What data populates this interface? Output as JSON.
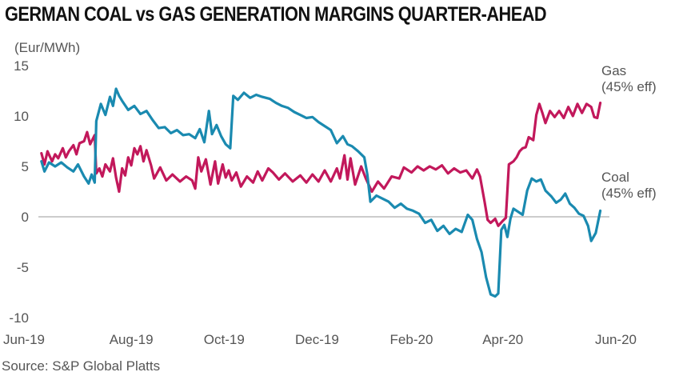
{
  "title": "GERMAN COAL vs GAS GENERATION MARGINS QUARTER-AHEAD",
  "unit_label": "(Eur/MWh)",
  "source": "Source: S&P Global Platts",
  "colors": {
    "gas": "#c2185b",
    "coal": "#1a8ab0",
    "zero_line": "#999999"
  },
  "chart_data": {
    "type": "line",
    "title": "GERMAN COAL vs GAS GENERATION MARGINS QUARTER-AHEAD",
    "xlabel": "",
    "ylabel": "(Eur/MWh)",
    "ylim": [
      -10,
      15
    ],
    "yticks": [
      15,
      10,
      5,
      0,
      -5,
      -10
    ],
    "ytick_labels": [
      "15",
      "10",
      "5",
      "0",
      "-5",
      "-10"
    ],
    "xlim": [
      "2019-06-01",
      "2020-06-10"
    ],
    "xticks": [
      "2019-06-01",
      "2019-08-01",
      "2019-10-01",
      "2019-12-01",
      "2020-02-01",
      "2020-04-01",
      "2020-06-01"
    ],
    "xtick_labels": [
      "Jun-19",
      "Aug-19",
      "Oct-19",
      "Dec-19",
      "Feb-20",
      "Apr-20",
      "Jun-20"
    ],
    "grid": false,
    "series": [
      {
        "name": "Gas",
        "label_lines": [
          "Gas",
          "(45% eff)"
        ],
        "points": [
          [
            "2019-06-03",
            6.3
          ],
          [
            "2019-06-05",
            5.2
          ],
          [
            "2019-06-07",
            6.5
          ],
          [
            "2019-06-10",
            5.5
          ],
          [
            "2019-06-12",
            6.2
          ],
          [
            "2019-06-14",
            5.8
          ],
          [
            "2019-06-17",
            6.8
          ],
          [
            "2019-06-19",
            5.9
          ],
          [
            "2019-06-21",
            6.5
          ],
          [
            "2019-06-24",
            7.1
          ],
          [
            "2019-06-26",
            6.2
          ],
          [
            "2019-06-28",
            7.3
          ],
          [
            "2019-07-01",
            7.5
          ],
          [
            "2019-07-03",
            8.4
          ],
          [
            "2019-07-05",
            7.2
          ],
          [
            "2019-07-08",
            8.1
          ],
          [
            "2019-07-09",
            4.3
          ],
          [
            "2019-07-11",
            4.8
          ],
          [
            "2019-07-13",
            4.0
          ],
          [
            "2019-07-15",
            5.2
          ],
          [
            "2019-07-18",
            4.5
          ],
          [
            "2019-07-20",
            5.8
          ],
          [
            "2019-07-22",
            3.9
          ],
          [
            "2019-07-24",
            2.5
          ],
          [
            "2019-07-26",
            4.8
          ],
          [
            "2019-07-28",
            4.1
          ],
          [
            "2019-07-30",
            5.9
          ],
          [
            "2019-08-01",
            5.1
          ],
          [
            "2019-08-03",
            6.8
          ],
          [
            "2019-08-05",
            6.2
          ],
          [
            "2019-08-07",
            7.0
          ],
          [
            "2019-08-09",
            5.5
          ],
          [
            "2019-08-11",
            6.6
          ],
          [
            "2019-08-14",
            5.1
          ],
          [
            "2019-08-16",
            3.8
          ],
          [
            "2019-08-20",
            4.9
          ],
          [
            "2019-08-24",
            3.6
          ],
          [
            "2019-08-28",
            4.2
          ],
          [
            "2019-09-02",
            3.5
          ],
          [
            "2019-09-06",
            4.0
          ],
          [
            "2019-09-10",
            3.6
          ],
          [
            "2019-09-12",
            2.8
          ],
          [
            "2019-09-14",
            5.9
          ],
          [
            "2019-09-16",
            4.5
          ],
          [
            "2019-09-19",
            5.7
          ],
          [
            "2019-09-22",
            3.2
          ],
          [
            "2019-09-25",
            5.5
          ],
          [
            "2019-09-27",
            3.3
          ],
          [
            "2019-09-30",
            5.2
          ],
          [
            "2019-10-02",
            3.9
          ],
          [
            "2019-10-04",
            4.6
          ],
          [
            "2019-10-06",
            3.6
          ],
          [
            "2019-10-09",
            4.4
          ],
          [
            "2019-10-12",
            3.0
          ],
          [
            "2019-10-16",
            4.0
          ],
          [
            "2019-10-20",
            3.4
          ],
          [
            "2019-10-23",
            4.5
          ],
          [
            "2019-10-26",
            3.6
          ],
          [
            "2019-10-30",
            4.8
          ],
          [
            "2019-11-02",
            4.4
          ],
          [
            "2019-11-06",
            3.7
          ],
          [
            "2019-11-10",
            4.3
          ],
          [
            "2019-11-15",
            3.5
          ],
          [
            "2019-11-20",
            4.1
          ],
          [
            "2019-11-24",
            3.4
          ],
          [
            "2019-11-28",
            4.2
          ],
          [
            "2019-12-02",
            3.5
          ],
          [
            "2019-12-06",
            4.6
          ],
          [
            "2019-12-10",
            3.5
          ],
          [
            "2019-12-14",
            4.8
          ],
          [
            "2019-12-16",
            3.8
          ],
          [
            "2019-12-19",
            6.1
          ],
          [
            "2019-12-21",
            3.7
          ],
          [
            "2019-12-23",
            5.8
          ],
          [
            "2019-12-26",
            3.2
          ],
          [
            "2019-12-30",
            5.0
          ],
          [
            "2020-01-02",
            3.8
          ],
          [
            "2020-01-06",
            2.5
          ],
          [
            "2020-01-10",
            3.5
          ],
          [
            "2020-01-14",
            2.8
          ],
          [
            "2020-01-19",
            4.0
          ],
          [
            "2020-01-24",
            3.8
          ],
          [
            "2020-01-27",
            4.9
          ],
          [
            "2020-02-01",
            4.4
          ],
          [
            "2020-02-05",
            5.0
          ],
          [
            "2020-02-09",
            4.6
          ],
          [
            "2020-02-13",
            5.0
          ],
          [
            "2020-02-17",
            4.7
          ],
          [
            "2020-02-21",
            5.1
          ],
          [
            "2020-02-25",
            4.3
          ],
          [
            "2020-02-29",
            4.8
          ],
          [
            "2020-03-04",
            4.4
          ],
          [
            "2020-03-08",
            4.6
          ],
          [
            "2020-03-12",
            3.8
          ],
          [
            "2020-03-15",
            4.7
          ],
          [
            "2020-03-17",
            4.0
          ],
          [
            "2020-03-20",
            1.5
          ],
          [
            "2020-03-22",
            -0.3
          ],
          [
            "2020-03-24",
            -0.6
          ],
          [
            "2020-03-27",
            -0.2
          ],
          [
            "2020-03-29",
            -0.9
          ],
          [
            "2020-04-01",
            -0.4
          ],
          [
            "2020-04-03",
            -0.1
          ],
          [
            "2020-04-05",
            5.2
          ],
          [
            "2020-04-08",
            5.5
          ],
          [
            "2020-04-10",
            5.9
          ],
          [
            "2020-04-12",
            6.5
          ],
          [
            "2020-04-14",
            6.8
          ],
          [
            "2020-04-16",
            6.9
          ],
          [
            "2020-04-18",
            7.9
          ],
          [
            "2020-04-21",
            7.6
          ],
          [
            "2020-04-23",
            10.1
          ],
          [
            "2020-04-25",
            11.2
          ],
          [
            "2020-04-27",
            10.3
          ],
          [
            "2020-04-29",
            9.3
          ],
          [
            "2020-05-02",
            10.5
          ],
          [
            "2020-05-05",
            9.9
          ],
          [
            "2020-05-08",
            10.5
          ],
          [
            "2020-05-11",
            9.8
          ],
          [
            "2020-05-14",
            10.9
          ],
          [
            "2020-05-17",
            10.0
          ],
          [
            "2020-05-20",
            11.2
          ],
          [
            "2020-05-23",
            10.3
          ],
          [
            "2020-05-26",
            11.2
          ],
          [
            "2020-05-29",
            10.9
          ],
          [
            "2020-05-31",
            9.9
          ],
          [
            "2020-06-02",
            9.8
          ],
          [
            "2020-06-04",
            11.3
          ]
        ]
      },
      {
        "name": "Coal",
        "label_lines": [
          "Coal",
          "(45% eff)"
        ],
        "points": [
          [
            "2019-06-03",
            5.5
          ],
          [
            "2019-06-05",
            4.5
          ],
          [
            "2019-06-08",
            5.4
          ],
          [
            "2019-06-12",
            5.0
          ],
          [
            "2019-06-16",
            5.4
          ],
          [
            "2019-06-20",
            4.9
          ],
          [
            "2019-06-24",
            4.5
          ],
          [
            "2019-06-27",
            5.2
          ],
          [
            "2019-07-01",
            4.0
          ],
          [
            "2019-07-04",
            3.3
          ],
          [
            "2019-07-06",
            4.2
          ],
          [
            "2019-07-08",
            3.4
          ],
          [
            "2019-07-09",
            9.5
          ],
          [
            "2019-07-12",
            11.2
          ],
          [
            "2019-07-15",
            10.1
          ],
          [
            "2019-07-18",
            11.9
          ],
          [
            "2019-07-20",
            11.0
          ],
          [
            "2019-07-22",
            12.7
          ],
          [
            "2019-07-24",
            12.0
          ],
          [
            "2019-07-26",
            11.5
          ],
          [
            "2019-07-30",
            10.6
          ],
          [
            "2019-08-03",
            11.0
          ],
          [
            "2019-08-07",
            10.2
          ],
          [
            "2019-08-11",
            10.5
          ],
          [
            "2019-08-15",
            9.6
          ],
          [
            "2019-08-19",
            8.8
          ],
          [
            "2019-08-23",
            8.9
          ],
          [
            "2019-08-27",
            8.3
          ],
          [
            "2019-08-31",
            8.6
          ],
          [
            "2019-09-04",
            8.1
          ],
          [
            "2019-09-08",
            8.2
          ],
          [
            "2019-09-12",
            7.8
          ],
          [
            "2019-09-15",
            8.7
          ],
          [
            "2019-09-18",
            7.4
          ],
          [
            "2019-09-21",
            10.5
          ],
          [
            "2019-09-23",
            8.2
          ],
          [
            "2019-09-26",
            9.1
          ],
          [
            "2019-09-29",
            8.0
          ],
          [
            "2019-10-02",
            7.2
          ],
          [
            "2019-10-05",
            6.8
          ],
          [
            "2019-10-07",
            12.0
          ],
          [
            "2019-10-10",
            11.6
          ],
          [
            "2019-10-14",
            12.3
          ],
          [
            "2019-10-18",
            11.8
          ],
          [
            "2019-10-22",
            12.1
          ],
          [
            "2019-10-26",
            11.9
          ],
          [
            "2019-10-31",
            11.7
          ],
          [
            "2019-11-04",
            11.3
          ],
          [
            "2019-11-08",
            11.0
          ],
          [
            "2019-11-12",
            10.8
          ],
          [
            "2019-11-16",
            10.4
          ],
          [
            "2019-11-20",
            10.1
          ],
          [
            "2019-11-24",
            9.8
          ],
          [
            "2019-11-28",
            9.9
          ],
          [
            "2019-12-02",
            9.4
          ],
          [
            "2019-12-06",
            9.0
          ],
          [
            "2019-12-10",
            8.6
          ],
          [
            "2019-12-14",
            7.3
          ],
          [
            "2019-12-18",
            8.0
          ],
          [
            "2019-12-21",
            7.2
          ],
          [
            "2019-12-24",
            7.0
          ],
          [
            "2019-12-28",
            6.5
          ],
          [
            "2020-01-01",
            5.9
          ],
          [
            "2020-01-03",
            4.2
          ],
          [
            "2020-01-05",
            1.5
          ],
          [
            "2020-01-09",
            2.1
          ],
          [
            "2020-01-13",
            1.8
          ],
          [
            "2020-01-17",
            1.5
          ],
          [
            "2020-01-21",
            0.9
          ],
          [
            "2020-01-25",
            1.3
          ],
          [
            "2020-01-29",
            0.8
          ],
          [
            "2020-02-02",
            0.6
          ],
          [
            "2020-02-06",
            0.3
          ],
          [
            "2020-02-10",
            -0.6
          ],
          [
            "2020-02-14",
            -0.3
          ],
          [
            "2020-02-18",
            -1.4
          ],
          [
            "2020-02-22",
            -0.9
          ],
          [
            "2020-02-26",
            -1.7
          ],
          [
            "2020-03-01",
            -1.2
          ],
          [
            "2020-03-05",
            -1.5
          ],
          [
            "2020-03-09",
            0.2
          ],
          [
            "2020-03-12",
            -0.3
          ],
          [
            "2020-03-15",
            -2.2
          ],
          [
            "2020-03-18",
            -3.5
          ],
          [
            "2020-03-21",
            -6.0
          ],
          [
            "2020-03-24",
            -7.7
          ],
          [
            "2020-03-27",
            -7.9
          ],
          [
            "2020-03-29",
            -7.6
          ],
          [
            "2020-03-31",
            -1.3
          ],
          [
            "2020-04-02",
            -0.8
          ],
          [
            "2020-04-04",
            -2.0
          ],
          [
            "2020-04-06",
            -0.2
          ],
          [
            "2020-04-08",
            0.8
          ],
          [
            "2020-04-11",
            0.5
          ],
          [
            "2020-04-14",
            0.2
          ],
          [
            "2020-04-17",
            2.6
          ],
          [
            "2020-04-20",
            3.8
          ],
          [
            "2020-04-23",
            3.5
          ],
          [
            "2020-04-26",
            3.7
          ],
          [
            "2020-04-29",
            2.6
          ],
          [
            "2020-05-03",
            2.0
          ],
          [
            "2020-05-06",
            1.4
          ],
          [
            "2020-05-09",
            1.7
          ],
          [
            "2020-05-12",
            2.3
          ],
          [
            "2020-05-15",
            1.3
          ],
          [
            "2020-05-18",
            0.9
          ],
          [
            "2020-05-21",
            0.3
          ],
          [
            "2020-05-24",
            0.1
          ],
          [
            "2020-05-27",
            -0.9
          ],
          [
            "2020-05-29",
            -2.4
          ],
          [
            "2020-06-01",
            -1.6
          ],
          [
            "2020-06-04",
            0.6
          ]
        ]
      }
    ]
  }
}
